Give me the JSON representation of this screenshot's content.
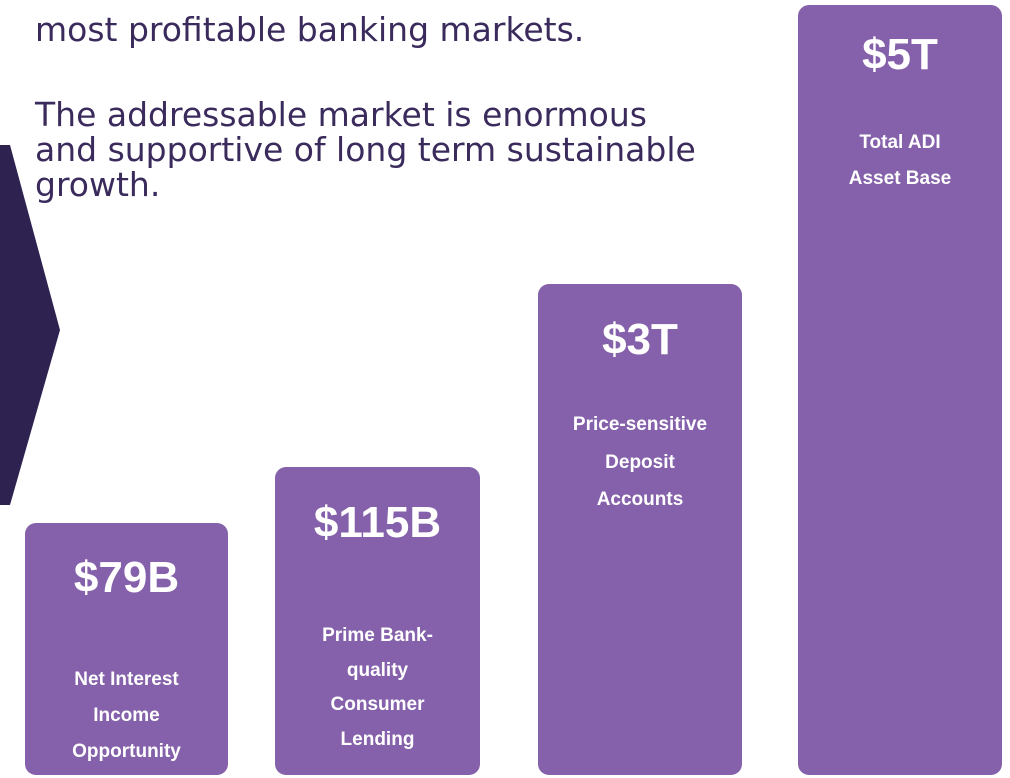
{
  "paragraphs": [
    {
      "lines": [
        "most profitable banking markets."
      ]
    },
    {
      "lines": [
        "The addressable market is enormous",
        "and supportive of long term sustainable",
        "growth."
      ]
    }
  ],
  "cards": [
    {
      "value": "$79B",
      "label_lines": [
        "Net Interest",
        "Income",
        "Opportunity"
      ]
    },
    {
      "value": "$115B",
      "label_lines": [
        "Prime Bank-",
        "quality",
        "Consumer",
        "Lending"
      ]
    },
    {
      "value": "$3T",
      "label_lines": [
        "Price-sensitive",
        "Deposit",
        "Accounts"
      ]
    },
    {
      "value": "$5T",
      "label_lines": [
        "Total ADI",
        "Asset Base"
      ]
    }
  ]
}
